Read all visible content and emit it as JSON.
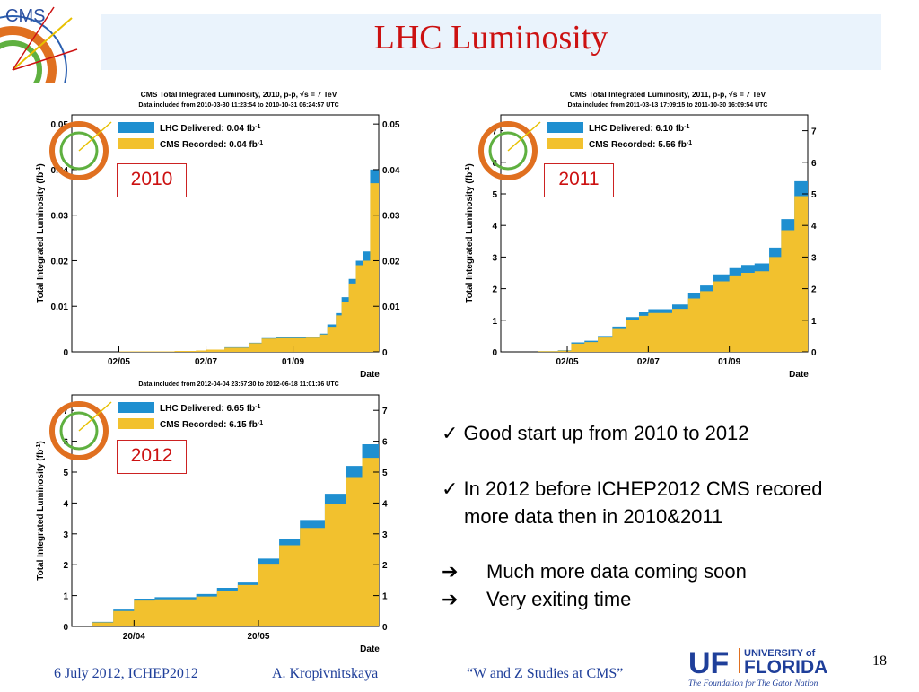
{
  "slide": {
    "title": "LHC Luminosity",
    "page_number": "18"
  },
  "plots": [
    {
      "title": "CMS Total Integrated Luminosity, 2010, p-p,  √s = 7 TeV",
      "subtitle": "Data included from 2010-03-30 11:23:54 to 2010-10-31 06:24:57 UTC",
      "legend_delivered": "LHC Delivered: 0.04 fb",
      "legend_recorded": "CMS Recorded: 0.04 fb",
      "legend_sup": "-1",
      "ylabel": "Total Integrated Luminosity (fb",
      "ylabel_sup": "-1",
      "ylabel_end": ")",
      "xlabel": "Date",
      "year_label": "2010",
      "ticks": [
        "0",
        "0.01",
        "0.02",
        "0.03",
        "0.04",
        "0.05"
      ],
      "date_ticks": [
        "02/05",
        "02/07",
        "01/09"
      ]
    },
    {
      "title": "CMS Total Integrated Luminosity, 2011, p-p,  √s = 7 TeV",
      "subtitle": "Data included from 2011-03-13 17:09:15 to 2011-10-30 16:09:54 UTC",
      "legend_delivered": "LHC Delivered: 6.10 fb",
      "legend_recorded": "CMS Recorded: 5.56 fb",
      "legend_sup": "-1",
      "ylabel": "Total Integrated Luminosity (fb",
      "ylabel_sup": "-1",
      "ylabel_end": ")",
      "xlabel": "Date",
      "year_label": "2011",
      "ticks": [
        "0",
        "1",
        "2",
        "3",
        "4",
        "5",
        "6",
        "7"
      ],
      "date_ticks": [
        "02/05",
        "02/07",
        "01/09"
      ]
    },
    {
      "title": "",
      "subtitle": "Data included from 2012-04-04 23:57:30 to 2012-06-18 11:01:36 UTC",
      "legend_delivered": "LHC Delivered: 6.65 fb",
      "legend_recorded": "CMS Recorded: 6.15 fb",
      "legend_sup": "-1",
      "ylabel": "Total Integrated Luminosity (fb",
      "ylabel_sup": "-1",
      "ylabel_end": ")",
      "xlabel": "Date",
      "year_label": "2012",
      "ticks": [
        "0",
        "1",
        "2",
        "3",
        "4",
        "5",
        "6",
        "7"
      ],
      "date_ticks": [
        "20/04",
        "20/05"
      ]
    }
  ],
  "bullets": [
    "✓ Good start up from 2010 to 2012",
    "✓ In 2012 before ICHEP2012 CMS recored",
    "more data then in 2010&2011",
    "Much more data coming soon",
    "Very exiting time"
  ],
  "arrow_glyph": "➔",
  "footer": {
    "date": "6 July 2012, ICHEP2012",
    "author": "A. Kropivnitskaya",
    "talk": "“W and Z Studies at CMS”"
  },
  "uf_logo": {
    "mark": "UF",
    "top": "UNIVERSITY of",
    "name": "FLORIDA",
    "tagline": "The Foundation for The Gator Nation"
  },
  "cms_logo_text": "CMS",
  "colors": {
    "title": "#cc1111",
    "delivered": "#1f8fd0",
    "recorded": "#f2c12e",
    "title_bar": "#eaf3fc",
    "footer": "#1f3f9a"
  },
  "chart_data": [
    {
      "type": "area",
      "title": "CMS Total Integrated Luminosity, 2010, p-p,  √s = 7 TeV",
      "xlabel": "Date",
      "ylabel": "Total Integrated Luminosity (fb-1)",
      "x": [
        "2010-03-30",
        "2010-04-15",
        "2010-05-02",
        "2010-05-20",
        "2010-06-10",
        "2010-06-25",
        "2010-07-02",
        "2010-07-15",
        "2010-08-01",
        "2010-08-10",
        "2010-08-20",
        "2010-09-01",
        "2010-09-10",
        "2010-09-20",
        "2010-09-25",
        "2010-10-01",
        "2010-10-05",
        "2010-10-10",
        "2010-10-15",
        "2010-10-20",
        "2010-10-25",
        "2010-10-31"
      ],
      "series": [
        {
          "name": "LHC Delivered: 0.04 fb-1",
          "values": [
            0,
            0,
            0.0001,
            0.0001,
            0.0002,
            0.0003,
            0.0005,
            0.001,
            0.002,
            0.003,
            0.0032,
            0.0032,
            0.0033,
            0.004,
            0.006,
            0.0085,
            0.012,
            0.016,
            0.02,
            0.022,
            0.04,
            0.044
          ]
        },
        {
          "name": "CMS Recorded: 0.04 fb-1",
          "values": [
            0,
            0,
            0.0001,
            0.0001,
            0.0002,
            0.0003,
            0.0005,
            0.0009,
            0.0019,
            0.0029,
            0.003,
            0.003,
            0.0031,
            0.0038,
            0.0055,
            0.008,
            0.011,
            0.015,
            0.019,
            0.02,
            0.037,
            0.041
          ]
        }
      ],
      "ylim": [
        0,
        0.052
      ]
    },
    {
      "type": "area",
      "title": "CMS Total Integrated Luminosity, 2011, p-p,  √s = 7 TeV",
      "xlabel": "Date",
      "ylabel": "Total Integrated Luminosity (fb-1)",
      "x": [
        "2011-03-13",
        "2011-03-25",
        "2011-04-10",
        "2011-04-25",
        "2011-05-05",
        "2011-05-15",
        "2011-05-25",
        "2011-06-05",
        "2011-06-15",
        "2011-06-25",
        "2011-07-02",
        "2011-07-10",
        "2011-07-20",
        "2011-08-01",
        "2011-08-10",
        "2011-08-20",
        "2011-09-01",
        "2011-09-10",
        "2011-09-20",
        "2011-10-01",
        "2011-10-10",
        "2011-10-20",
        "2011-10-30"
      ],
      "series": [
        {
          "name": "LHC Delivered: 6.10 fb-1",
          "values": [
            0,
            0,
            0.02,
            0.05,
            0.3,
            0.35,
            0.5,
            0.8,
            1.1,
            1.25,
            1.35,
            1.35,
            1.5,
            1.85,
            2.1,
            2.45,
            2.65,
            2.75,
            2.8,
            3.3,
            4.2,
            5.4,
            6.1
          ]
        },
        {
          "name": "CMS Recorded: 5.56 fb-1",
          "values": [
            0,
            0,
            0.02,
            0.04,
            0.26,
            0.31,
            0.45,
            0.72,
            1.0,
            1.14,
            1.23,
            1.23,
            1.36,
            1.69,
            1.92,
            2.23,
            2.42,
            2.5,
            2.55,
            3.0,
            3.85,
            4.93,
            5.56
          ]
        }
      ],
      "ylim": [
        0,
        7.5
      ]
    },
    {
      "type": "area",
      "title": "",
      "xlabel": "Date",
      "ylabel": "Total Integrated Luminosity (fb-1)",
      "x": [
        "2012-04-05",
        "2012-04-10",
        "2012-04-15",
        "2012-04-20",
        "2012-04-25",
        "2012-04-30",
        "2012-05-05",
        "2012-05-10",
        "2012-05-15",
        "2012-05-20",
        "2012-05-25",
        "2012-05-30",
        "2012-06-05",
        "2012-06-10",
        "2012-06-14",
        "2012-06-18"
      ],
      "series": [
        {
          "name": "LHC Delivered: 6.65 fb-1",
          "values": [
            0,
            0.15,
            0.55,
            0.9,
            0.95,
            0.95,
            1.05,
            1.25,
            1.45,
            2.2,
            2.85,
            3.45,
            4.3,
            5.2,
            5.9,
            6.65
          ]
        },
        {
          "name": "CMS Recorded: 6.15 fb-1",
          "values": [
            0,
            0.13,
            0.5,
            0.84,
            0.88,
            0.88,
            0.97,
            1.16,
            1.34,
            2.03,
            2.63,
            3.19,
            3.98,
            4.81,
            5.46,
            6.15
          ]
        }
      ],
      "ylim": [
        0,
        7.5
      ]
    }
  ]
}
